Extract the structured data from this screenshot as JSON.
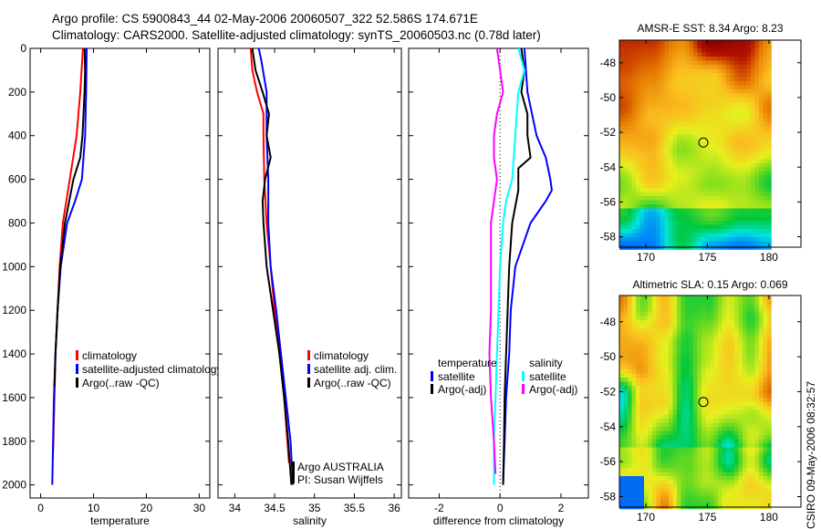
{
  "title_lines": [
    "Argo profile: CS 5900843_44 02-May-2006 20060507_322 52.586S 174.671E",
    "Climatology: CARS2000. Satellite-adjusted climatology: synTS_20060503.nc (0.78d later)"
  ],
  "side_label": "CSIRO 09-May-2006 08:32:57",
  "chart_data": [
    {
      "type": "line",
      "id": "temperature",
      "xlabel": "temperature",
      "ylabel": "",
      "xlim": [
        -2,
        32
      ],
      "ylim": [
        0,
        2060
      ],
      "xticks": [
        0,
        10,
        20,
        30
      ],
      "yticks": [
        0,
        200,
        400,
        600,
        800,
        1000,
        1200,
        1400,
        1600,
        1800,
        2000
      ],
      "y_reversed": true,
      "legend": [
        {
          "label": "climatology",
          "color": "#ff0000"
        },
        {
          "label": "satellite-adjusted climatology",
          "color": "#0000ff"
        },
        {
          "label": "Argo(..raw -QC)",
          "color": "#000000"
        }
      ],
      "series": [
        {
          "name": "climatology",
          "color": "#ff0000",
          "depth": [
            0,
            200,
            400,
            600,
            800,
            1000,
            1200,
            1400,
            1600,
            1800,
            1880
          ],
          "x": [
            8.0,
            7.5,
            6.8,
            5.5,
            4.2,
            3.6,
            3.2,
            2.8,
            2.6,
            2.4,
            2.3
          ]
        },
        {
          "name": "satellite-adjusted climatology",
          "color": "#0000ff",
          "depth": [
            0,
            200,
            400,
            600,
            700,
            800,
            1000,
            1200,
            1400,
            1600,
            2000
          ],
          "x": [
            8.7,
            8.6,
            8.4,
            7.8,
            6.5,
            5.0,
            3.8,
            3.2,
            2.8,
            2.5,
            2.2
          ]
        },
        {
          "name": "Argo(..raw -QC)",
          "color": "#000000",
          "depth": [
            0,
            100,
            200,
            400,
            500,
            600,
            800,
            1000,
            1200,
            1400,
            1550
          ],
          "x": [
            8.3,
            8.4,
            8.3,
            7.9,
            7.5,
            6.2,
            4.6,
            3.7,
            3.2,
            2.8,
            2.6
          ]
        }
      ]
    },
    {
      "type": "line",
      "id": "salinity",
      "xlabel": "salinity",
      "xlim": [
        33.79,
        36.09
      ],
      "ylim": [
        0,
        2060
      ],
      "xticks": [
        34,
        34.5,
        35,
        35.5,
        36
      ],
      "y_reversed": true,
      "legend": [
        {
          "label": "climatology",
          "color": "#ff0000"
        },
        {
          "label": "satellite adj. clim.",
          "color": "#0000ff"
        },
        {
          "label": "Argo(..raw -QC)",
          "color": "#000000"
        }
      ],
      "annotations": [
        "Argo AUSTRALIA",
        "PI: Susan Wijffels"
      ],
      "series": [
        {
          "name": "climatology",
          "color": "#ff0000",
          "depth": [
            0,
            100,
            200,
            300,
            400,
            600,
            800,
            1000,
            1200,
            1400,
            1600,
            1800,
            1900
          ],
          "x": [
            34.2,
            34.22,
            34.28,
            34.36,
            34.36,
            34.37,
            34.4,
            34.45,
            34.5,
            34.56,
            34.62,
            34.66,
            34.68
          ]
        },
        {
          "name": "satellite adj. clim.",
          "color": "#0000ff",
          "depth": [
            0,
            50,
            200,
            400,
            600,
            800,
            1000,
            1200,
            1400,
            1600,
            1800,
            2000
          ],
          "x": [
            34.3,
            34.33,
            34.4,
            34.4,
            34.42,
            34.42,
            34.45,
            34.52,
            34.58,
            34.64,
            34.7,
            34.73
          ]
        },
        {
          "name": "Argo(..raw -QC)",
          "color": "#000000",
          "depth": [
            0,
            100,
            200,
            300,
            400,
            500,
            600,
            700,
            800,
            1000,
            1200,
            1400,
            1600,
            1800,
            2000
          ],
          "x": [
            34.22,
            34.26,
            34.35,
            34.43,
            34.4,
            34.45,
            34.38,
            34.35,
            34.36,
            34.4,
            34.48,
            34.56,
            34.62,
            34.67,
            34.71
          ]
        }
      ]
    },
    {
      "type": "line",
      "id": "difference",
      "xlabel": "difference from climatology",
      "xlim": [
        -3,
        2.9
      ],
      "ylim": [
        0,
        2060
      ],
      "xticks": [
        -2,
        0,
        2
      ],
      "y_reversed": true,
      "legend_groups": [
        {
          "heading": "temperature",
          "items": [
            {
              "label": "satellite",
              "color": "#0000ff"
            },
            {
              "label": "Argo(-adj)",
              "color": "#000000"
            }
          ]
        },
        {
          "heading": "salinity",
          "items": [
            {
              "label": "satellite",
              "color": "#00ffff"
            },
            {
              "label": "Argo(-adj)",
              "color": "#ff00ff"
            }
          ]
        }
      ],
      "series": [
        {
          "name": "temperature satellite",
          "color": "#0000ff",
          "depth": [
            0,
            200,
            400,
            500,
            600,
            650,
            700,
            800,
            1000,
            1200,
            1400,
            1600,
            1800,
            2000
          ],
          "x": [
            0.8,
            0.9,
            1.2,
            1.5,
            1.65,
            1.7,
            1.5,
            1.0,
            0.5,
            0.35,
            0.3,
            0.2,
            0.15,
            0.1
          ]
        },
        {
          "name": "temperature Argo(-adj)",
          "color": "#000000",
          "depth": [
            0,
            100,
            200,
            300,
            400,
            500,
            550,
            650,
            800,
            1000,
            1200,
            1400,
            1600,
            1800,
            2000
          ],
          "x": [
            0.7,
            0.8,
            0.7,
            0.9,
            0.9,
            1.0,
            0.6,
            0.6,
            0.4,
            0.3,
            0.25,
            0.2,
            0.15,
            0.13,
            0.1
          ]
        },
        {
          "name": "salinity satellite",
          "color": "#00ffff",
          "depth": [
            0,
            100,
            200,
            300,
            400,
            500,
            600,
            700,
            800,
            1000,
            1200,
            1400,
            1600,
            1800,
            2000
          ],
          "x": [
            0.6,
            0.8,
            0.6,
            0.55,
            0.5,
            0.45,
            0.4,
            0.2,
            0.1,
            0,
            -0.05,
            -0.1,
            -0.15,
            -0.2,
            -0.2
          ]
        },
        {
          "name": "salinity Argo(-adj)",
          "color": "#ff00ff",
          "depth": [
            0,
            100,
            200,
            300,
            400,
            500,
            600,
            700,
            800,
            1000,
            1200,
            1400,
            1600,
            1800,
            1950
          ],
          "x": [
            -0.1,
            0,
            0.1,
            -0.1,
            -0.2,
            -0.2,
            -0.1,
            -0.2,
            -0.3,
            -0.3,
            -0.3,
            -0.35,
            -0.3,
            -0.2,
            -0.15
          ]
        }
      ]
    },
    {
      "type": "heatmap",
      "id": "sst-map",
      "title": "AMSR-E SST: 8.34 Argo: 8.23",
      "xlim": [
        167.85,
        182.6
      ],
      "ylim": [
        -58.6,
        -46.7
      ],
      "xticks": [
        170,
        175,
        180
      ],
      "yticks": [
        -48,
        -50,
        -52,
        -54,
        -56,
        -58
      ],
      "marker": {
        "lon": 174.671,
        "lat": -52.586
      }
    },
    {
      "type": "heatmap",
      "id": "sla-map",
      "title": "Altimetric SLA: 0.15 Argo: 0.069",
      "xlim": [
        167.85,
        182.6
      ],
      "ylim": [
        -58.6,
        -46.5
      ],
      "xticks": [
        170,
        175,
        180
      ],
      "yticks": [
        -48,
        -50,
        -52,
        -54,
        -56,
        -58
      ],
      "marker": {
        "lon": 174.671,
        "lat": -52.586
      }
    }
  ]
}
